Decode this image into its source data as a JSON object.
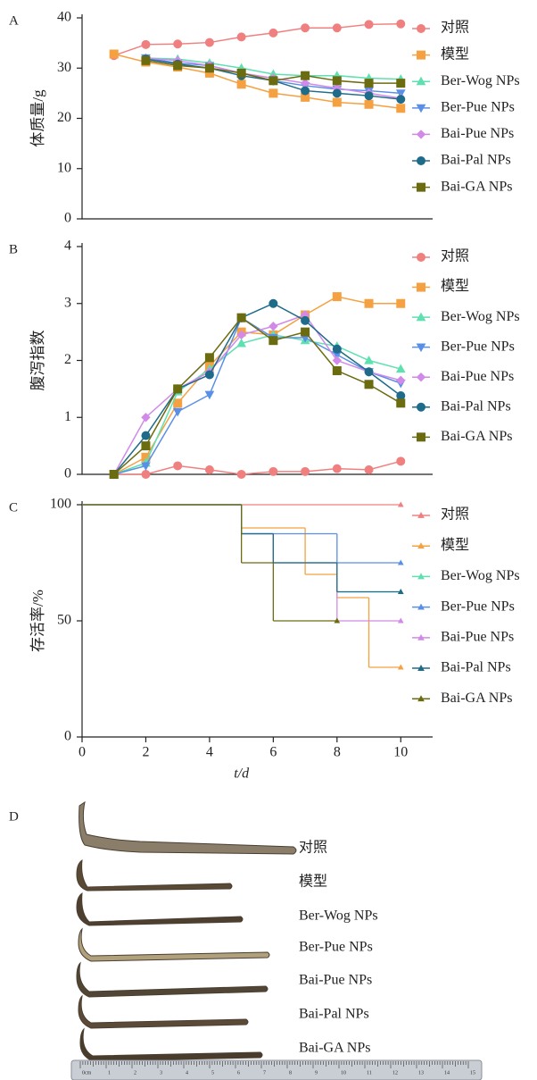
{
  "chart_data": [
    {
      "type": "line",
      "panel_label": "A",
      "ylabel": "体质量/g",
      "legend": "right",
      "grid": false,
      "x": [
        1,
        2,
        3,
        4,
        5,
        6,
        7,
        8,
        9,
        10
      ],
      "xlim": [
        0,
        11
      ],
      "ylim": [
        0,
        40
      ],
      "yticks": [
        0,
        10,
        20,
        30,
        40
      ],
      "series": [
        {
          "name": "对照",
          "color": "#f08080",
          "marker": "circle",
          "values": [
            32.5,
            34.7,
            34.8,
            35.1,
            36.2,
            37,
            38,
            38,
            38.7,
            38.8
          ]
        },
        {
          "name": "模型",
          "color": "#f5a142",
          "marker": "square",
          "values": [
            32.8,
            31.2,
            30.2,
            29,
            26.8,
            25,
            24.2,
            23.2,
            22.8,
            22
          ]
        },
        {
          "name": "Ber-Wog NPs",
          "color": "#5ee0b0",
          "marker": "triangle-up",
          "values": [
            null,
            32,
            31.8,
            31,
            30,
            28.8,
            28.5,
            28.5,
            28,
            27.8
          ]
        },
        {
          "name": "Ber-Pue NPs",
          "color": "#5a8fe6",
          "marker": "triangle-down",
          "values": [
            null,
            32,
            31,
            30.5,
            29,
            27.5,
            26.5,
            25.8,
            25.5,
            25
          ]
        },
        {
          "name": "Bai-Pue NPs",
          "color": "#d28ae8",
          "marker": "diamond",
          "values": [
            null,
            32,
            31.5,
            30.5,
            29,
            28,
            27,
            26,
            25,
            24
          ]
        },
        {
          "name": "Bai-Pal NPs",
          "color": "#1f6b8a",
          "marker": "circle",
          "values": [
            null,
            31.8,
            30.8,
            30,
            28.5,
            27.5,
            25.5,
            25,
            24.5,
            23.8
          ]
        },
        {
          "name": "Bai-GA NPs",
          "color": "#6b6b10",
          "marker": "square",
          "values": [
            null,
            31.5,
            30.5,
            30,
            29,
            27.5,
            28.5,
            27.5,
            27,
            27
          ]
        }
      ]
    },
    {
      "type": "line",
      "panel_label": "B",
      "ylabel": "腹泻指数",
      "legend": "right",
      "grid": false,
      "x": [
        1,
        2,
        3,
        4,
        5,
        6,
        7,
        8,
        9,
        10
      ],
      "xlim": [
        0,
        11
      ],
      "ylim": [
        0,
        4
      ],
      "yticks": [
        0,
        1,
        2,
        3,
        4
      ],
      "series": [
        {
          "name": "对照",
          "color": "#f08080",
          "marker": "circle",
          "values": [
            0,
            0,
            0.15,
            0.08,
            0,
            0.05,
            0.05,
            0.1,
            0.08,
            0.23
          ]
        },
        {
          "name": "模型",
          "color": "#f5a142",
          "marker": "square",
          "values": [
            0,
            0.3,
            1.25,
            1.9,
            2.5,
            2.45,
            2.8,
            3.12,
            3,
            3
          ]
        },
        {
          "name": "Ber-Wog NPs",
          "color": "#5ee0b0",
          "marker": "triangle-up",
          "values": [
            0,
            0.2,
            1.45,
            1.85,
            2.3,
            2.45,
            2.35,
            2.25,
            2,
            1.85
          ]
        },
        {
          "name": "Ber-Pue NPs",
          "color": "#5a8fe6",
          "marker": "triangle-down",
          "values": [
            0,
            0.15,
            1.1,
            1.4,
            2.75,
            2.4,
            2.4,
            2.1,
            1.8,
            1.6
          ]
        },
        {
          "name": "Bai-Pue NPs",
          "color": "#d28ae8",
          "marker": "diamond",
          "values": [
            0,
            1,
            1.5,
            1.8,
            2.45,
            2.6,
            2.8,
            2,
            1.8,
            1.65
          ]
        },
        {
          "name": "Bai-Pal NPs",
          "color": "#1f6b8a",
          "marker": "circle",
          "values": [
            0,
            0.68,
            1.5,
            1.75,
            2.75,
            3,
            2.7,
            2.2,
            1.8,
            1.38
          ]
        },
        {
          "name": "Bai-GA NPs",
          "color": "#6b6b10",
          "marker": "square",
          "values": [
            0,
            0.5,
            1.5,
            2.05,
            2.75,
            2.35,
            2.5,
            1.82,
            1.58,
            1.25
          ]
        }
      ]
    },
    {
      "type": "step",
      "panel_label": "C",
      "ylabel": "存活率/%",
      "xlabel": "t/d",
      "legend": "right",
      "grid": false,
      "xlim": [
        0,
        11
      ],
      "ylim": [
        0,
        100
      ],
      "yticks": [
        0,
        50,
        100
      ],
      "xticks": [
        0,
        2,
        4,
        6,
        8,
        10
      ],
      "series": [
        {
          "name": "对照",
          "color": "#f08080",
          "marker": "triangle-up",
          "x": [
            0,
            10
          ],
          "values": [
            100,
            100
          ]
        },
        {
          "name": "模型",
          "color": "#f5a142",
          "marker": "triangle-up",
          "x": [
            0,
            5,
            7,
            8,
            9,
            10
          ],
          "values": [
            100,
            90,
            70,
            60,
            30,
            30
          ]
        },
        {
          "name": "Ber-Wog NPs",
          "color": "#5ee0b0",
          "marker": "triangle-up",
          "x": [
            0,
            5,
            6,
            8,
            10
          ],
          "values": [
            100,
            87.5,
            75,
            62.5,
            62.5
          ]
        },
        {
          "name": "Ber-Pue NPs",
          "color": "#5a8fe6",
          "marker": "triangle-up",
          "x": [
            0,
            5,
            8,
            10
          ],
          "values": [
            100,
            87.5,
            75,
            75
          ]
        },
        {
          "name": "Bai-Pue NPs",
          "color": "#d28ae8",
          "marker": "triangle-up",
          "x": [
            0,
            5,
            6,
            8,
            10
          ],
          "values": [
            100,
            87.5,
            75,
            50,
            50
          ]
        },
        {
          "name": "Bai-Pal NPs",
          "color": "#1f6b8a",
          "marker": "triangle-up",
          "x": [
            0,
            5,
            6,
            8,
            10
          ],
          "values": [
            100,
            87.5,
            75,
            62.5,
            62.5
          ]
        },
        {
          "name": "Bai-GA NPs",
          "color": "#6b6b10",
          "marker": "triangle-up",
          "x": [
            0,
            5,
            6,
            8
          ],
          "values": [
            100,
            75,
            50,
            50
          ]
        }
      ]
    }
  ],
  "panel_d": {
    "label": "D",
    "labels": [
      "对照",
      "模型",
      "Ber-Wog NPs",
      "Ber-Pue NPs",
      "Bai-Pue NPs",
      "Bai-Pal NPs",
      "Bai-GA NPs"
    ],
    "ruler_labels": [
      "0cm",
      "1",
      "2",
      "3",
      "4",
      "5",
      "6",
      "7",
      "8",
      "9",
      "10",
      "11",
      "12",
      "13",
      "14",
      "15"
    ]
  }
}
